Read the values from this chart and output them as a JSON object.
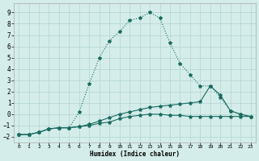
{
  "xlabel": "Humidex (Indice chaleur)",
  "background_color": "#d4edea",
  "grid_color": "#b8d8d4",
  "line_color": "#1a6b60",
  "xlim": [
    -0.5,
    23.5
  ],
  "ylim": [
    -2.5,
    9.8
  ],
  "xticks": [
    0,
    1,
    2,
    3,
    4,
    5,
    6,
    7,
    8,
    9,
    10,
    11,
    12,
    13,
    14,
    15,
    16,
    17,
    18,
    19,
    20,
    21,
    22,
    23
  ],
  "yticks": [
    -2,
    -1,
    0,
    1,
    2,
    3,
    4,
    5,
    6,
    7,
    8,
    9
  ],
  "series1_x": [
    0,
    1,
    2,
    3,
    4,
    5,
    6,
    7,
    8,
    9,
    10,
    11,
    12,
    13,
    14,
    15,
    16,
    17,
    18,
    19,
    20,
    21,
    22,
    23
  ],
  "series1_y": [
    -1.8,
    -1.8,
    -1.6,
    -1.3,
    -1.2,
    -1.2,
    0.2,
    2.7,
    5.0,
    6.5,
    7.3,
    8.3,
    8.5,
    9.0,
    8.5,
    6.3,
    4.5,
    3.5,
    2.5,
    2.5,
    1.5,
    0.3,
    0.0,
    -0.2
  ],
  "series1_style": "dotted",
  "series2_x": [
    0,
    1,
    2,
    3,
    4,
    5,
    6,
    7,
    8,
    9,
    10,
    11,
    12,
    13,
    14,
    15,
    16,
    17,
    18,
    19,
    20,
    21,
    22,
    23
  ],
  "series2_y": [
    -1.8,
    -1.8,
    -1.6,
    -1.3,
    -1.2,
    -1.2,
    -1.1,
    -0.9,
    -0.6,
    -0.3,
    0.0,
    0.2,
    0.4,
    0.6,
    0.7,
    0.8,
    0.9,
    1.0,
    1.1,
    2.5,
    1.7,
    0.3,
    0.0,
    -0.2
  ],
  "series2_style": "solid",
  "series3_x": [
    0,
    1,
    2,
    3,
    4,
    5,
    6,
    7,
    8,
    9,
    10,
    11,
    12,
    13,
    14,
    15,
    16,
    17,
    18,
    19,
    20,
    21,
    22,
    23
  ],
  "series3_y": [
    -1.8,
    -1.8,
    -1.6,
    -1.3,
    -1.2,
    -1.2,
    -1.1,
    -1.0,
    -0.8,
    -0.7,
    -0.4,
    -0.2,
    -0.1,
    0.0,
    0.0,
    -0.1,
    -0.1,
    -0.2,
    -0.2,
    -0.2,
    -0.2,
    -0.2,
    -0.2,
    -0.2
  ],
  "series3_style": "solid"
}
